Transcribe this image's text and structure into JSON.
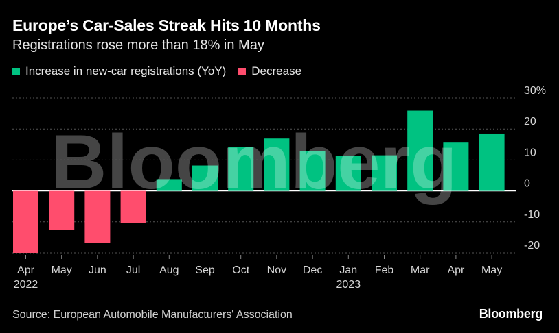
{
  "title": "Europe’s Car-Sales Streak Hits 10 Months",
  "subtitle": "Registrations rose more than 18% in May",
  "legend": {
    "increase": "Increase in new-car registrations (YoY)",
    "decrease": "Decrease"
  },
  "source": "Source: European Automobile Manufacturers' Association",
  "brand": "Bloomberg",
  "watermark": "Bloomberg",
  "colors": {
    "increase": "#00c281",
    "decrease": "#ff4d6d",
    "background": "#000000"
  },
  "chart_data": {
    "type": "bar",
    "categories": [
      "Apr",
      "May",
      "Jun",
      "Jul",
      "Aug",
      "Sep",
      "Oct",
      "Nov",
      "Dec",
      "Jan",
      "Feb",
      "Mar",
      "Apr",
      "May"
    ],
    "year_labels": [
      "2022",
      "",
      "",
      "",
      "",
      "",
      "",
      "",
      "",
      "2023",
      "",
      "",
      "",
      ""
    ],
    "values": [
      -20.0,
      -12.5,
      -16.7,
      -10.4,
      3.8,
      8.2,
      14.2,
      16.9,
      12.8,
      11.3,
      11.5,
      25.9,
      15.8,
      18.5
    ],
    "ylim": [
      -20,
      30
    ],
    "yticks": [
      30,
      20,
      10,
      0,
      -10,
      -20
    ],
    "ytick_labels": [
      "30%",
      "20",
      "10",
      "0",
      "-10",
      "-20"
    ],
    "grid": true,
    "legend_position": "top-left"
  }
}
